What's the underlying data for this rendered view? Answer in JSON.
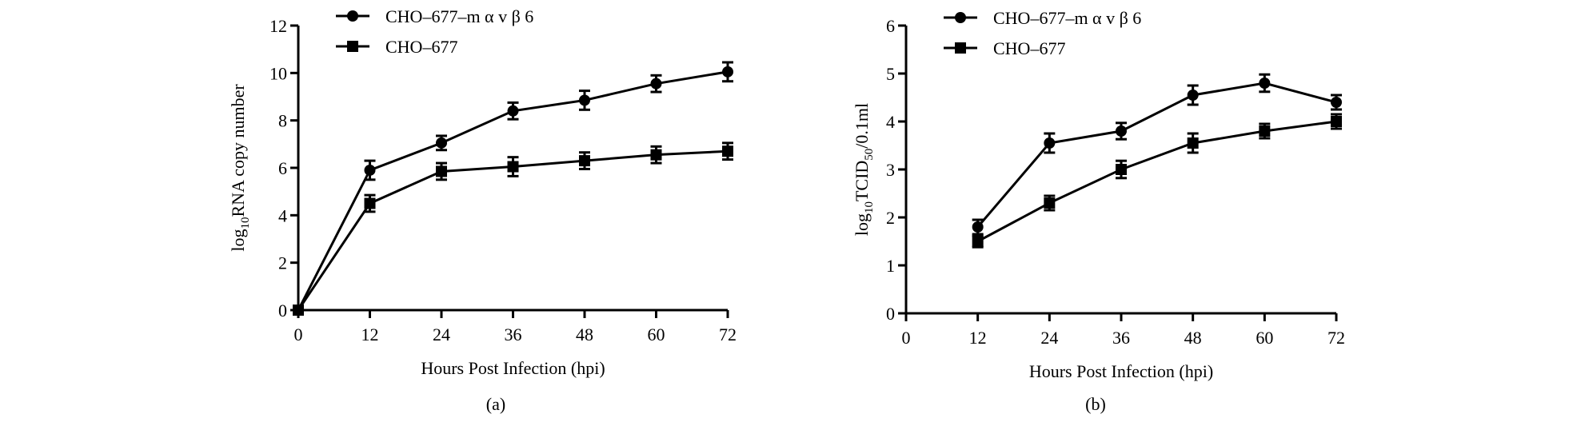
{
  "chart_data": [
    {
      "type": "line",
      "panel_label": "(a)",
      "xlabel": "Hours Post Infection (hpi)",
      "ylabel": {
        "prefix": "log",
        "sub": "10",
        "text": "RNA copy number"
      },
      "x": [
        0,
        12,
        24,
        36,
        48,
        60,
        72
      ],
      "xticks": [
        "0",
        "12",
        "24",
        "36",
        "48",
        "60",
        "72"
      ],
      "yticks": [
        "0",
        "2",
        "4",
        "6",
        "8",
        "10",
        "12"
      ],
      "ylim": [
        0,
        12
      ],
      "legend_position": "top-left",
      "series": [
        {
          "name": "CHO–677–m α v β 6",
          "marker": "circle",
          "x": [
            0,
            12,
            24,
            36,
            48,
            60,
            72
          ],
          "values": [
            0,
            5.9,
            7.05,
            8.4,
            8.85,
            9.55,
            10.05
          ],
          "error": [
            0.1,
            0.4,
            0.3,
            0.35,
            0.4,
            0.35,
            0.4
          ]
        },
        {
          "name": "CHO–677",
          "marker": "square",
          "x": [
            0,
            12,
            24,
            36,
            48,
            60,
            72
          ],
          "values": [
            0,
            4.5,
            5.85,
            6.05,
            6.3,
            6.55,
            6.7
          ],
          "error": [
            0.1,
            0.35,
            0.35,
            0.4,
            0.35,
            0.35,
            0.35
          ]
        }
      ]
    },
    {
      "type": "line",
      "panel_label": "(b)",
      "xlabel": "Hours Post Infection (hpi)",
      "ylabel": {
        "prefix": "log",
        "sub": "10",
        "text": "TCID",
        "sub2": "50",
        "suffix": "/0.1ml"
      },
      "x": [
        0,
        12,
        24,
        36,
        48,
        60,
        72
      ],
      "xticks": [
        "0",
        "12",
        "24",
        "36",
        "48",
        "60",
        "72"
      ],
      "yticks": [
        "0",
        "1",
        "2",
        "3",
        "4",
        "5",
        "6"
      ],
      "ylim": [
        0,
        6
      ],
      "legend_position": "top-left",
      "series": [
        {
          "name": "CHO–677–m α v β 6",
          "marker": "circle",
          "x": [
            12,
            24,
            36,
            48,
            60,
            72
          ],
          "values": [
            1.8,
            3.55,
            3.8,
            4.55,
            4.8,
            4.4
          ],
          "error": [
            0.15,
            0.2,
            0.17,
            0.2,
            0.18,
            0.15
          ]
        },
        {
          "name": "CHO–677",
          "marker": "square",
          "x": [
            12,
            24,
            36,
            48,
            60,
            72
          ],
          "values": [
            1.5,
            2.3,
            3.0,
            3.55,
            3.8,
            4.0
          ],
          "error": [
            0.12,
            0.15,
            0.18,
            0.2,
            0.15,
            0.15
          ]
        }
      ]
    }
  ]
}
